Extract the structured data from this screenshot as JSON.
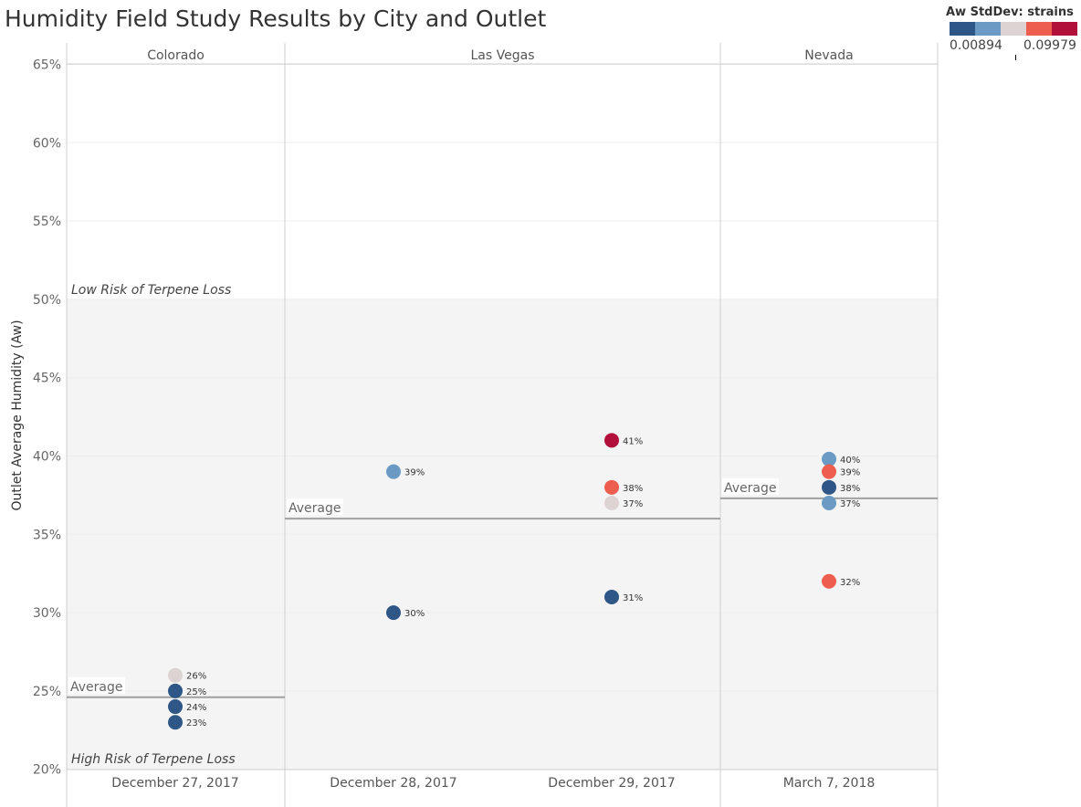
{
  "title": "Humidity Field Study Results by City and Outlet",
  "legend": {
    "title": "Aw StdDev: strains",
    "min_label": "0.00894",
    "max_label": "0.09979",
    "colors": [
      "#2e5687",
      "#6b9ac4",
      "#ddd3d3",
      "#ee5e4f",
      "#b0103a"
    ]
  },
  "chart_data": {
    "type": "scatter",
    "title": "Humidity Field Study Results by City and Outlet",
    "ylabel": "Outlet Average Humidity (Aw)",
    "xlabel": "",
    "ylim": [
      20,
      65
    ],
    "y_ticks": [
      "20%",
      "25%",
      "30%",
      "35%",
      "40%",
      "45%",
      "50%",
      "55%",
      "60%",
      "65%"
    ],
    "y_tick_values": [
      20,
      25,
      30,
      35,
      40,
      45,
      50,
      55,
      60,
      65
    ],
    "panels": [
      {
        "name": "Colorado",
        "dates": [
          "December 27, 2017"
        ],
        "average_label": "Average",
        "average": 24.6
      },
      {
        "name": "Las Vegas",
        "dates": [
          "December 28, 2017",
          "December 29, 2017"
        ],
        "average_label": "Average",
        "average": 36.0
      },
      {
        "name": "Nevada",
        "dates": [
          "March 7, 2018"
        ],
        "average_label": "Average",
        "average": 37.3
      }
    ],
    "points": [
      {
        "date": "December 27, 2017",
        "value": 26,
        "label": "26%",
        "color": "#ddd3d3"
      },
      {
        "date": "December 27, 2017",
        "value": 25,
        "label": "25%",
        "color": "#2e5687"
      },
      {
        "date": "December 27, 2017",
        "value": 24,
        "label": "24%",
        "color": "#2e5687"
      },
      {
        "date": "December 27, 2017",
        "value": 23,
        "label": "23%",
        "color": "#2e5687"
      },
      {
        "date": "December 28, 2017",
        "value": 39,
        "label": "39%",
        "color": "#6b9ac4"
      },
      {
        "date": "December 28, 2017",
        "value": 30,
        "label": "30%",
        "color": "#2e5687"
      },
      {
        "date": "December 29, 2017",
        "value": 41,
        "label": "41%",
        "color": "#b0103a"
      },
      {
        "date": "December 29, 2017",
        "value": 38,
        "label": "38%",
        "color": "#ee5e4f"
      },
      {
        "date": "December 29, 2017",
        "value": 37,
        "label": "37%",
        "color": "#ddd3d3"
      },
      {
        "date": "December 29, 2017",
        "value": 31,
        "label": "31%",
        "color": "#2e5687"
      },
      {
        "date": "March 7, 2018",
        "value": 39.8,
        "label": "40%",
        "color": "#6b9ac4"
      },
      {
        "date": "March 7, 2018",
        "value": 39,
        "label": "39%",
        "color": "#ee5e4f"
      },
      {
        "date": "March 7, 2018",
        "value": 38,
        "label": "38%",
        "color": "#2e5687"
      },
      {
        "date": "March 7, 2018",
        "value": 37,
        "label": "37%",
        "color": "#6b9ac4"
      },
      {
        "date": "March 7, 2018",
        "value": 32,
        "label": "32%",
        "color": "#ee5e4f"
      }
    ],
    "risk_band": {
      "from": 20,
      "to": 50,
      "color": "#f4f4f4"
    },
    "annotations": {
      "low_risk": "Low Risk of Terpene Loss",
      "high_risk": "High Risk of Terpene Loss"
    },
    "grid": true,
    "legend_position": "top-right"
  }
}
